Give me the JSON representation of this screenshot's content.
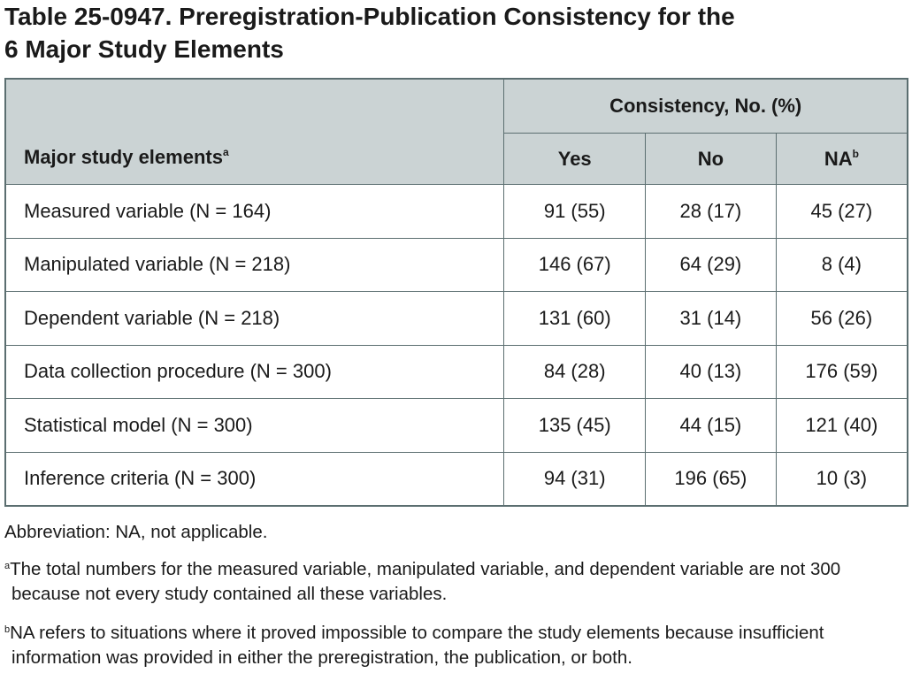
{
  "title": [
    "Table 25-0947. Preregistration-Publication Consistency for the",
    "6 Major Study Elements"
  ],
  "table": {
    "row_header": {
      "text": "Major study elements",
      "note": "a"
    },
    "group_header": "Consistency, No. (%)",
    "columns": [
      {
        "text": "Yes"
      },
      {
        "text": "No"
      },
      {
        "text": "NA",
        "note": "b"
      }
    ],
    "rows": [
      [
        "Measured variable (N = 164)",
        "91 (55)",
        "28 (17)",
        "45 (27)"
      ],
      [
        "Manipulated variable (N = 218)",
        "146 (67)",
        "64 (29)",
        "8 (4)"
      ],
      [
        "Dependent variable (N = 218)",
        "131 (60)",
        "31 (14)",
        "56 (26)"
      ],
      [
        "Data collection procedure (N = 300)",
        "84 (28)",
        "40 (13)",
        "176 (59)"
      ],
      [
        "Statistical model (N = 300)",
        "135 (45)",
        "44 (15)",
        "121 (40)"
      ],
      [
        "Inference criteria (N = 300)",
        "94 (31)",
        "196 (65)",
        "10 (3)"
      ]
    ]
  },
  "footnotes": {
    "abbreviation": "Abbreviation: NA, not applicable.",
    "notes": [
      {
        "mark": "a",
        "text": "The total numbers for the measured variable, manipulated variable, and dependent variable are not 300 because not every study contained all these variables."
      },
      {
        "mark": "b",
        "text": "NA refers to situations where it proved impossible to compare the study elements because insufficient information was provided in either the preregistration, the publication, or both."
      }
    ]
  }
}
